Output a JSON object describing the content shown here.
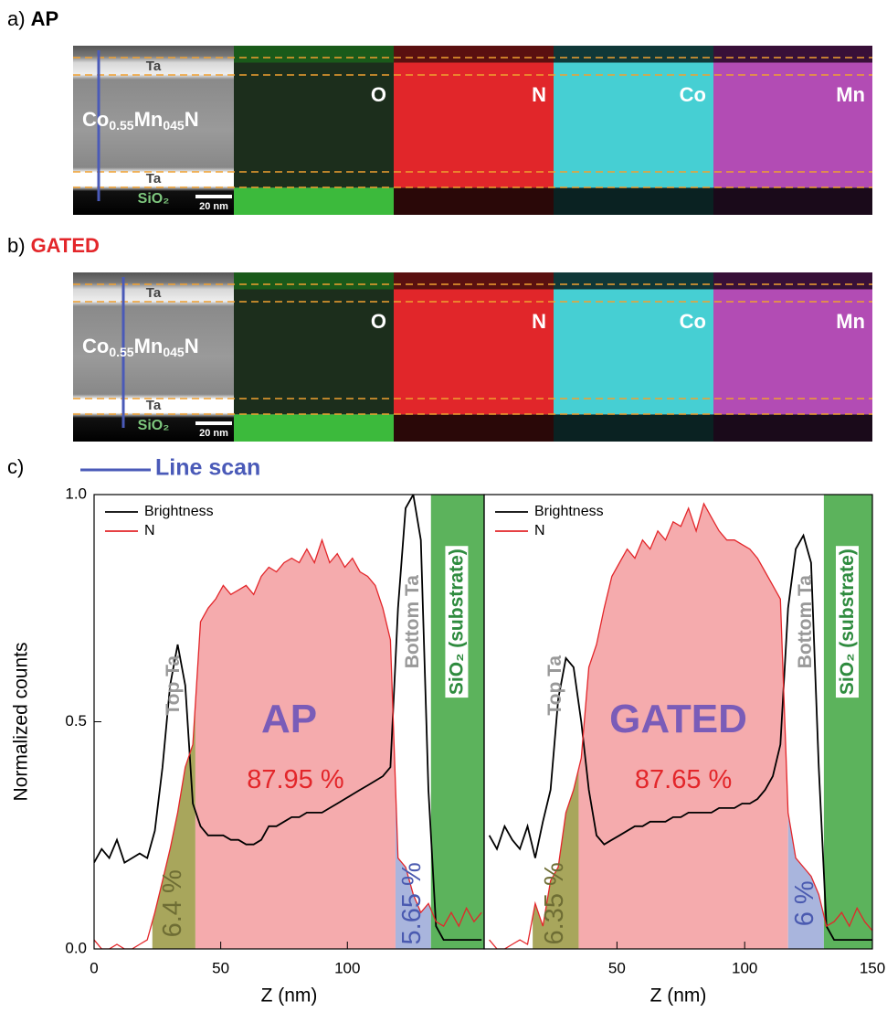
{
  "panels": [
    {
      "label": "a)",
      "title": "AP",
      "title_color": "#000000"
    },
    {
      "label": "b)",
      "title": "GATED",
      "title_color": "#e3262a"
    },
    {
      "label": "c)"
    }
  ],
  "image_labels": {
    "elements": [
      "O",
      "N",
      "Co",
      "Mn"
    ],
    "composition": [
      "Co",
      "0.55",
      "Mn",
      "045",
      "N"
    ],
    "layers": [
      "Ta",
      "Ta",
      "SiO₂"
    ],
    "scale_bar": "20 nm"
  },
  "line_scan": "Line scan",
  "chart_data": [
    {
      "type": "line",
      "label": "AP",
      "x_label": "Z (nm)",
      "y_label": "Normalized counts",
      "x": [
        0,
        3,
        6,
        9,
        12,
        15,
        18,
        21,
        24,
        27,
        30,
        33,
        36,
        39,
        42,
        45,
        48,
        51,
        54,
        57,
        60,
        63,
        66,
        69,
        72,
        75,
        78,
        81,
        84,
        87,
        90,
        93,
        96,
        99,
        102,
        105,
        108,
        111,
        114,
        117,
        120,
        123,
        126,
        129,
        132,
        135,
        138,
        141,
        144,
        147,
        150,
        153
      ],
      "series": [
        {
          "name": "Brightness",
          "color": "#000000",
          "values": [
            0.19,
            0.22,
            0.2,
            0.24,
            0.19,
            0.2,
            0.21,
            0.2,
            0.26,
            0.4,
            0.58,
            0.67,
            0.58,
            0.32,
            0.27,
            0.25,
            0.25,
            0.25,
            0.24,
            0.24,
            0.23,
            0.23,
            0.24,
            0.27,
            0.27,
            0.28,
            0.29,
            0.29,
            0.3,
            0.3,
            0.3,
            0.31,
            0.32,
            0.33,
            0.34,
            0.35,
            0.36,
            0.37,
            0.38,
            0.4,
            0.75,
            0.97,
            1.0,
            0.9,
            0.35,
            0.05,
            0.02,
            0.02,
            0.02,
            0.02,
            0.02,
            0.02
          ]
        },
        {
          "name": "N",
          "color": "#e3262a",
          "values": [
            0.02,
            0,
            0,
            0.01,
            0,
            0,
            0.01,
            0.02,
            0.08,
            0.15,
            0.22,
            0.3,
            0.4,
            0.45,
            0.72,
            0.75,
            0.77,
            0.8,
            0.78,
            0.79,
            0.8,
            0.78,
            0.82,
            0.84,
            0.83,
            0.85,
            0.86,
            0.85,
            0.88,
            0.85,
            0.9,
            0.85,
            0.87,
            0.84,
            0.86,
            0.83,
            0.82,
            0.8,
            0.75,
            0.68,
            0.2,
            0.18,
            0.12,
            0.08,
            0.1,
            0.06,
            0.05,
            0.08,
            0.05,
            0.09,
            0.06,
            0.08
          ]
        }
      ],
      "regions": [
        {
          "name": "Top Ta",
          "start": 23,
          "end": 40,
          "color": "#a8a65c",
          "percent": "6.4 %"
        },
        {
          "start": 40,
          "end": 119,
          "color": "#f5abad",
          "percent": "87.95 %"
        },
        {
          "name": "Bottom Ta",
          "start": 119,
          "end": 133,
          "color": "#a9b5dd",
          "percent": "5.65 %"
        },
        {
          "name": "SiO₂ (substrate)",
          "start": 133,
          "end": 154,
          "color": "#5cb35c"
        }
      ],
      "xlim": [
        0,
        154
      ],
      "ylim": [
        0,
        1
      ],
      "xticks": [
        0,
        50,
        100
      ],
      "yticks": [
        {
          "value": 0,
          "label": "0.0"
        },
        {
          "value": 0.5,
          "label": "0.5"
        },
        {
          "value": 1,
          "label": "1.0"
        }
      ]
    },
    {
      "type": "line",
      "label": "GATED",
      "x_label": "Z (nm)",
      "x": [
        0,
        3,
        6,
        9,
        12,
        15,
        18,
        21,
        24,
        27,
        30,
        33,
        36,
        39,
        42,
        45,
        48,
        51,
        54,
        57,
        60,
        63,
        66,
        69,
        72,
        75,
        78,
        81,
        84,
        87,
        90,
        93,
        96,
        99,
        102,
        105,
        108,
        111,
        114,
        117,
        120,
        123,
        126,
        129,
        132,
        135,
        138,
        141,
        144,
        147,
        150
      ],
      "series": [
        {
          "name": "Brightness",
          "color": "#000000",
          "values": [
            0.25,
            0.22,
            0.27,
            0.24,
            0.22,
            0.27,
            0.2,
            0.28,
            0.35,
            0.55,
            0.64,
            0.62,
            0.5,
            0.35,
            0.25,
            0.23,
            0.24,
            0.25,
            0.26,
            0.27,
            0.27,
            0.28,
            0.28,
            0.28,
            0.29,
            0.29,
            0.3,
            0.3,
            0.3,
            0.3,
            0.31,
            0.31,
            0.31,
            0.32,
            0.32,
            0.33,
            0.35,
            0.38,
            0.45,
            0.75,
            0.88,
            0.91,
            0.85,
            0.4,
            0.05,
            0.02,
            0.02,
            0.02,
            0.02,
            0.02,
            0.02
          ]
        },
        {
          "name": "N",
          "color": "#e3262a",
          "values": [
            0.02,
            0,
            0,
            0.01,
            0.02,
            0.01,
            0.1,
            0.05,
            0.15,
            0.18,
            0.3,
            0.35,
            0.42,
            0.62,
            0.67,
            0.75,
            0.82,
            0.85,
            0.88,
            0.86,
            0.9,
            0.88,
            0.92,
            0.9,
            0.94,
            0.93,
            0.97,
            0.92,
            0.98,
            0.95,
            0.92,
            0.9,
            0.9,
            0.89,
            0.88,
            0.86,
            0.83,
            0.8,
            0.77,
            0.3,
            0.2,
            0.18,
            0.16,
            0.12,
            0.05,
            0.06,
            0.08,
            0.05,
            0.09,
            0.06,
            0.04
          ]
        }
      ],
      "regions": [
        {
          "name": "Top Ta",
          "start": 17,
          "end": 35,
          "color": "#a8a65c",
          "percent": "6.35 %"
        },
        {
          "start": 35,
          "end": 117,
          "color": "#f5abad",
          "percent": "87.65 %"
        },
        {
          "name": "Bottom Ta",
          "start": 117,
          "end": 131,
          "color": "#a9b5dd",
          "percent": "6 %"
        },
        {
          "name": "SiO₂ (substrate)",
          "start": 131,
          "end": 150,
          "color": "#5cb35c"
        }
      ],
      "xlim": [
        -2,
        150
      ],
      "ylim": [
        0,
        1
      ],
      "xticks": [
        50,
        100,
        150
      ]
    }
  ]
}
